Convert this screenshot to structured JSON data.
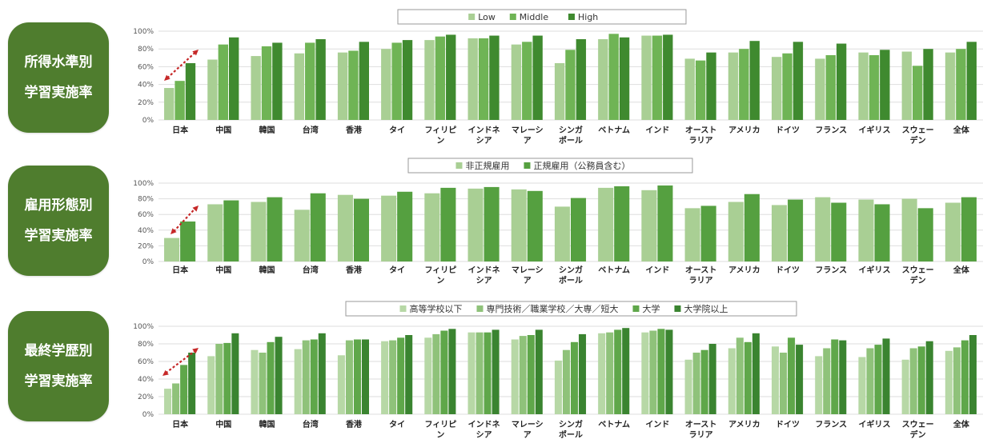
{
  "panels": [
    {
      "line1": "所得水準別",
      "line2": "学習実施率"
    },
    {
      "line1": "雇用形態別",
      "line2": "学習実施率"
    },
    {
      "line1": "最終学歴別",
      "line2": "学習実施率"
    }
  ],
  "colors": {
    "pill": "#4f7d2e",
    "arrow": "#c62828",
    "grid": "#dedede",
    "shades2": [
      "#a9cf94",
      "#55a040"
    ],
    "shades3": [
      "#a9cf94",
      "#6fb455",
      "#3f8a2f"
    ],
    "shades4": [
      "#b7d8a6",
      "#8fc27a",
      "#5fa74a",
      "#3a8430"
    ]
  },
  "chart_data": [
    {
      "type": "bar",
      "yticks": [
        "0%",
        "20%",
        "40%",
        "60%",
        "80%",
        "100%"
      ],
      "ylim": [
        0,
        100
      ],
      "categories": [
        "日本",
        "中国",
        "韓国",
        "台湾",
        "香港",
        "タイ",
        "フィリピ\nン",
        "インドネ\nシア",
        "マレーシ\nア",
        "シンガ\nポール",
        "ベトナム",
        "インド",
        "オースト\nラリア",
        "アメリカ",
        "ドイツ",
        "フランス",
        "イギリス",
        "スウェー\nデン",
        "全体"
      ],
      "legend_position": "top",
      "series": [
        {
          "name": "Low",
          "values": [
            36,
            68,
            72,
            75,
            76,
            80,
            90,
            92,
            85,
            64,
            91,
            95,
            69,
            76,
            71,
            69,
            76,
            77,
            76
          ]
        },
        {
          "name": "Middle",
          "values": [
            44,
            85,
            83,
            87,
            78,
            87,
            94,
            92,
            88,
            79,
            97,
            95,
            67,
            80,
            75,
            73,
            73,
            61,
            80
          ]
        },
        {
          "name": "High",
          "values": [
            64,
            93,
            87,
            91,
            88,
            90,
            96,
            95,
            95,
            91,
            93,
            96,
            76,
            89,
            88,
            86,
            79,
            80,
            88
          ]
        }
      ]
    },
    {
      "type": "bar",
      "yticks": [
        "0%",
        "20%",
        "40%",
        "60%",
        "80%",
        "100%"
      ],
      "ylim": [
        0,
        100
      ],
      "categories": [
        "日本",
        "中国",
        "韓国",
        "台湾",
        "香港",
        "タイ",
        "フィリピ\nン",
        "インドネ\nシア",
        "マレーシ\nア",
        "シンガ\nポール",
        "ベトナム",
        "インド",
        "オースト\nラリア",
        "アメリカ",
        "ドイツ",
        "フランス",
        "イギリス",
        "スウェー\nデン",
        "全体"
      ],
      "legend_position": "top",
      "series": [
        {
          "name": "非正規雇用",
          "values": [
            30,
            73,
            76,
            66,
            85,
            84,
            87,
            93,
            92,
            70,
            94,
            91,
            68,
            76,
            72,
            82,
            79,
            80,
            75
          ]
        },
        {
          "name": "正規雇用（公務員含む）",
          "values": [
            51,
            78,
            82,
            87,
            80,
            89,
            94,
            95,
            90,
            81,
            96,
            97,
            71,
            86,
            79,
            75,
            73,
            68,
            82
          ]
        }
      ]
    },
    {
      "type": "bar",
      "yticks": [
        "0%",
        "20%",
        "40%",
        "60%",
        "80%",
        "100%"
      ],
      "ylim": [
        0,
        100
      ],
      "categories": [
        "日本",
        "中国",
        "韓国",
        "台湾",
        "香港",
        "タイ",
        "フィリピ\nン",
        "インドネ\nシア",
        "マレーシ\nア",
        "シンガ\nポール",
        "ベトナム",
        "インド",
        "オースト\nラリア",
        "アメリカ",
        "ドイツ",
        "フランス",
        "イギリス",
        "スウェー\nデン",
        "全体"
      ],
      "legend_position": "top",
      "series": [
        {
          "name": "高等学校以下",
          "values": [
            29,
            66,
            73,
            74,
            67,
            83,
            87,
            93,
            85,
            61,
            92,
            93,
            62,
            75,
            77,
            66,
            65,
            62,
            72
          ]
        },
        {
          "name": "専門技術／職業学校／大専／短大",
          "values": [
            35,
            80,
            70,
            84,
            84,
            84,
            91,
            93,
            89,
            73,
            93,
            95,
            70,
            87,
            70,
            75,
            75,
            75,
            76
          ]
        },
        {
          "name": "大学",
          "values": [
            56,
            81,
            82,
            85,
            85,
            87,
            95,
            93,
            90,
            82,
            96,
            97,
            73,
            82,
            87,
            85,
            79,
            77,
            84
          ]
        },
        {
          "name": "大学院以上",
          "values": [
            70,
            92,
            88,
            92,
            85,
            90,
            97,
            96,
            96,
            91,
            98,
            96,
            80,
            92,
            79,
            84,
            86,
            83,
            90
          ]
        }
      ]
    }
  ]
}
